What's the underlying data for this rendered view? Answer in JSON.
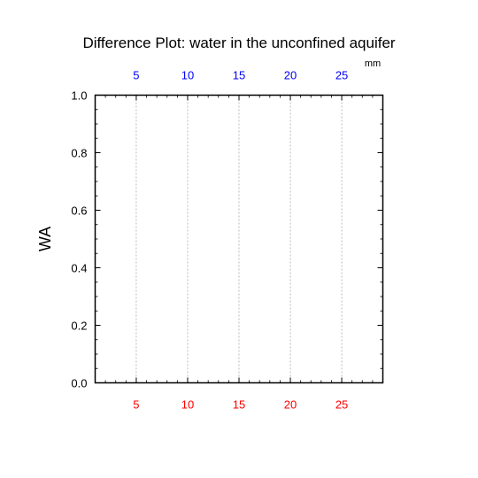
{
  "chart_data": {
    "type": "line",
    "title": "Difference Plot: water in the unconfined aquifer",
    "ylabel": "WA",
    "top_axis_unit": "mm",
    "xlim": [
      1,
      29
    ],
    "ylim": [
      0.0,
      1.0
    ],
    "x_ticks_bottom": [
      "5",
      "10",
      "15",
      "20",
      "25"
    ],
    "x_ticks_top": [
      "5",
      "10",
      "15",
      "20",
      "25"
    ],
    "x_tick_values": [
      5,
      10,
      15,
      20,
      25
    ],
    "y_ticks": [
      "0.0",
      "0.2",
      "0.4",
      "0.6",
      "0.8",
      "1.0"
    ],
    "y_tick_values": [
      0.0,
      0.2,
      0.4,
      0.6,
      0.8,
      1.0
    ],
    "grid": "vertical-dashed",
    "series": []
  },
  "colors": {
    "bottom_tick_labels": "#ff0000",
    "top_tick_labels": "#0000ff",
    "grid": "#aaaaaa",
    "axes": "#000000"
  }
}
